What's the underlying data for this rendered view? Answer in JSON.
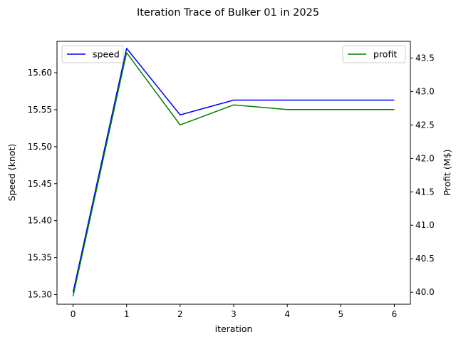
{
  "chart_data": {
    "type": "line",
    "title": "Iteration Trace of Bulker 01 in 2025",
    "xlabel": "iteration",
    "x": [
      0,
      1,
      2,
      3,
      4,
      5,
      6
    ],
    "xlim": [
      -0.3,
      6.3
    ],
    "x_ticks": [
      0,
      1,
      2,
      3,
      4,
      5,
      6
    ],
    "x_tick_labels": [
      "0",
      "1",
      "2",
      "3",
      "4",
      "5",
      "6"
    ],
    "y_left": {
      "label": "Speed (knot)",
      "label_color": "#0000ff",
      "ylim": [
        15.287,
        15.6425
      ],
      "ticks": [
        15.3,
        15.35,
        15.4,
        15.45,
        15.5,
        15.55,
        15.6
      ],
      "tick_labels": [
        "15.30",
        "15.35",
        "15.40",
        "15.45",
        "15.50",
        "15.55",
        "15.60"
      ]
    },
    "y_right": {
      "label": "Profit (M$)",
      "label_color": "#008000",
      "ylim": [
        39.82,
        43.75
      ],
      "ticks": [
        40.0,
        40.5,
        41.0,
        41.5,
        42.0,
        42.5,
        43.0,
        43.5
      ],
      "tick_labels": [
        "40.0",
        "40.5",
        "41.0",
        "41.5",
        "42.0",
        "42.5",
        "43.0",
        "43.5"
      ]
    },
    "series": [
      {
        "name": "speed",
        "axis": "left",
        "color": "#0000ff",
        "values": [
          15.303,
          15.633,
          15.543,
          15.563,
          15.563,
          15.563,
          15.563
        ]
      },
      {
        "name": "profit",
        "axis": "right",
        "color": "#008000",
        "values": [
          39.94,
          43.58,
          42.5,
          42.8,
          42.73,
          42.73,
          42.73
        ]
      }
    ],
    "legends": [
      {
        "series": "speed",
        "placement": "upper-left"
      },
      {
        "series": "profit",
        "placement": "upper-right"
      }
    ],
    "grid": false
  }
}
